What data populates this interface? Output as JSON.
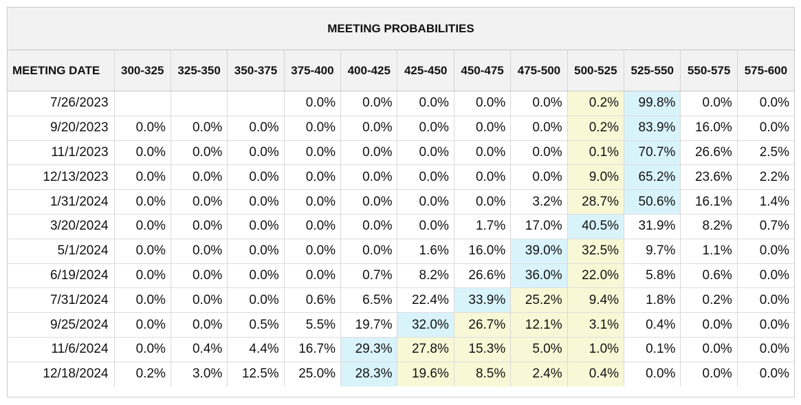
{
  "title": "MEETING PROBABILITIES",
  "columns": [
    "MEETING DATE",
    "300-325",
    "325-350",
    "350-375",
    "375-400",
    "400-425",
    "425-450",
    "450-475",
    "475-500",
    "500-525",
    "525-550",
    "550-575",
    "575-600"
  ],
  "colors": {
    "header_bg": "#f2f2f2",
    "current_target": "#f8f8d6",
    "highest_probability": "#d9f3fb",
    "border": "#c8c8c8"
  },
  "rows": [
    {
      "date": "7/26/2023",
      "values": [
        "",
        "",
        "",
        "0.0%",
        "0.0%",
        "0.0%",
        "0.0%",
        "0.0%",
        "0.2%",
        "99.8%",
        "0.0%",
        "0.0%"
      ],
      "hl": [
        "",
        "",
        "",
        "",
        "",
        "",
        "",
        "",
        "y",
        "b",
        "",
        ""
      ]
    },
    {
      "date": "9/20/2023",
      "values": [
        "0.0%",
        "0.0%",
        "0.0%",
        "0.0%",
        "0.0%",
        "0.0%",
        "0.0%",
        "0.0%",
        "0.2%",
        "83.9%",
        "16.0%",
        "0.0%"
      ],
      "hl": [
        "",
        "",
        "",
        "",
        "",
        "",
        "",
        "",
        "y",
        "b",
        "",
        ""
      ]
    },
    {
      "date": "11/1/2023",
      "values": [
        "0.0%",
        "0.0%",
        "0.0%",
        "0.0%",
        "0.0%",
        "0.0%",
        "0.0%",
        "0.0%",
        "0.1%",
        "70.7%",
        "26.6%",
        "2.5%"
      ],
      "hl": [
        "",
        "",
        "",
        "",
        "",
        "",
        "",
        "",
        "y",
        "b",
        "",
        ""
      ]
    },
    {
      "date": "12/13/2023",
      "values": [
        "0.0%",
        "0.0%",
        "0.0%",
        "0.0%",
        "0.0%",
        "0.0%",
        "0.0%",
        "0.0%",
        "9.0%",
        "65.2%",
        "23.6%",
        "2.2%"
      ],
      "hl": [
        "",
        "",
        "",
        "",
        "",
        "",
        "",
        "",
        "y",
        "b",
        "",
        ""
      ]
    },
    {
      "date": "1/31/2024",
      "values": [
        "0.0%",
        "0.0%",
        "0.0%",
        "0.0%",
        "0.0%",
        "0.0%",
        "0.0%",
        "3.2%",
        "28.7%",
        "50.6%",
        "16.1%",
        "1.4%"
      ],
      "hl": [
        "",
        "",
        "",
        "",
        "",
        "",
        "",
        "",
        "y",
        "b",
        "",
        ""
      ]
    },
    {
      "date": "3/20/2024",
      "values": [
        "0.0%",
        "0.0%",
        "0.0%",
        "0.0%",
        "0.0%",
        "0.0%",
        "1.7%",
        "17.0%",
        "40.5%",
        "31.9%",
        "8.2%",
        "0.7%"
      ],
      "hl": [
        "",
        "",
        "",
        "",
        "",
        "",
        "",
        "",
        "b",
        "",
        "",
        ""
      ]
    },
    {
      "date": "5/1/2024",
      "values": [
        "0.0%",
        "0.0%",
        "0.0%",
        "0.0%",
        "0.0%",
        "1.6%",
        "16.0%",
        "39.0%",
        "32.5%",
        "9.7%",
        "1.1%",
        "0.0%"
      ],
      "hl": [
        "",
        "",
        "",
        "",
        "",
        "",
        "",
        "b",
        "y",
        "",
        "",
        ""
      ]
    },
    {
      "date": "6/19/2024",
      "values": [
        "0.0%",
        "0.0%",
        "0.0%",
        "0.0%",
        "0.7%",
        "8.2%",
        "26.6%",
        "36.0%",
        "22.0%",
        "5.8%",
        "0.6%",
        "0.0%"
      ],
      "hl": [
        "",
        "",
        "",
        "",
        "",
        "",
        "",
        "b",
        "y",
        "",
        "",
        ""
      ]
    },
    {
      "date": "7/31/2024",
      "values": [
        "0.0%",
        "0.0%",
        "0.0%",
        "0.6%",
        "6.5%",
        "22.4%",
        "33.9%",
        "25.2%",
        "9.4%",
        "1.8%",
        "0.2%",
        "0.0%"
      ],
      "hl": [
        "",
        "",
        "",
        "",
        "",
        "",
        "b",
        "y",
        "y",
        "",
        "",
        ""
      ]
    },
    {
      "date": "9/25/2024",
      "values": [
        "0.0%",
        "0.0%",
        "0.5%",
        "5.5%",
        "19.7%",
        "32.0%",
        "26.7%",
        "12.1%",
        "3.1%",
        "0.4%",
        "0.0%",
        "0.0%"
      ],
      "hl": [
        "",
        "",
        "",
        "",
        "",
        "b",
        "y",
        "y",
        "y",
        "",
        "",
        ""
      ]
    },
    {
      "date": "11/6/2024",
      "values": [
        "0.0%",
        "0.4%",
        "4.4%",
        "16.7%",
        "29.3%",
        "27.8%",
        "15.3%",
        "5.0%",
        "1.0%",
        "0.1%",
        "0.0%",
        "0.0%"
      ],
      "hl": [
        "",
        "",
        "",
        "",
        "b",
        "y",
        "y",
        "y",
        "y",
        "",
        "",
        ""
      ]
    },
    {
      "date": "12/18/2024",
      "values": [
        "0.2%",
        "3.0%",
        "12.5%",
        "25.0%",
        "28.3%",
        "19.6%",
        "8.5%",
        "2.4%",
        "0.4%",
        "0.0%",
        "0.0%",
        "0.0%"
      ],
      "hl": [
        "",
        "",
        "",
        "",
        "b",
        "y",
        "y",
        "y",
        "y",
        "",
        "",
        ""
      ]
    }
  ]
}
